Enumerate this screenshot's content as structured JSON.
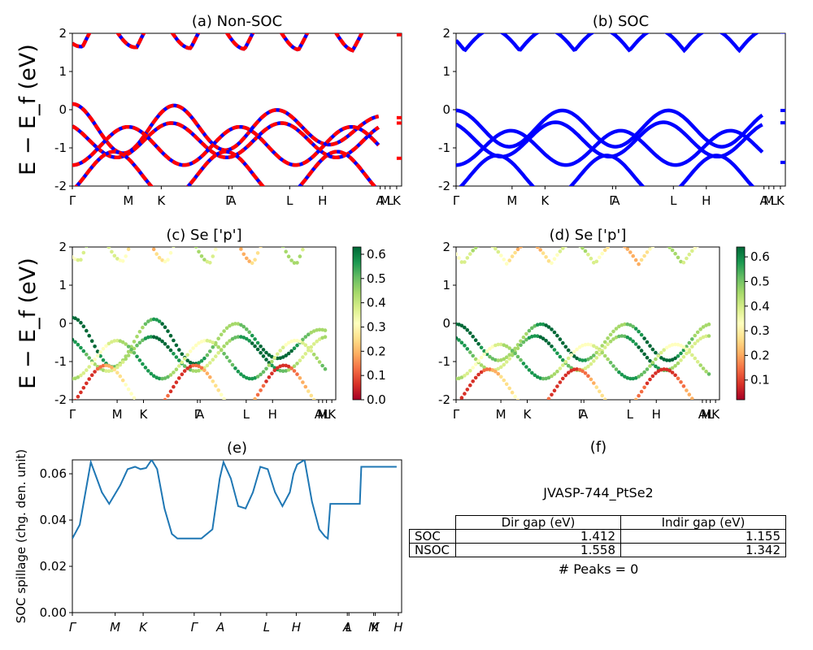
{
  "chart_data": [
    {
      "id": "a",
      "type": "line",
      "title": "(a) Non-SOC",
      "ylabel": "E − E_f (eV)",
      "ylim": [
        -2,
        2
      ],
      "yticks": [
        -2,
        -1,
        0,
        1,
        2
      ],
      "kpoints": [
        "Γ",
        "M",
        "K",
        "Γ",
        "A",
        "L",
        "H",
        "A",
        "M",
        "L",
        "K"
      ],
      "colors": [
        "#0000ff",
        "#ff0000"
      ],
      "style": "dashed-overlay"
    },
    {
      "id": "b",
      "type": "line",
      "title": "(b) SOC",
      "ylim": [
        -2,
        2
      ],
      "yticks": [
        -2,
        -1,
        0,
        1,
        2
      ],
      "kpoints": [
        "Γ",
        "M",
        "K",
        "Γ",
        "A",
        "L",
        "H",
        "A",
        "M",
        "L",
        "K"
      ],
      "colors": [
        "#0000ff"
      ]
    },
    {
      "id": "c",
      "type": "scatter",
      "title": "(c)  Se ['p']",
      "ylabel": "E − E_f (eV)",
      "ylim": [
        -2,
        2
      ],
      "yticks": [
        -2,
        -1,
        0,
        1,
        2
      ],
      "kpoints": [
        "Γ",
        "M",
        "K",
        "Γ",
        "A",
        "L",
        "H",
        "A",
        "M",
        "L",
        "K"
      ],
      "colorbar": {
        "min": 0.0,
        "max": 0.63,
        "ticks": [
          "0.0",
          "0.1",
          "0.2",
          "0.3",
          "0.4",
          "0.5",
          "0.6"
        ],
        "colormap": "RdYlGn"
      }
    },
    {
      "id": "d",
      "type": "scatter",
      "title": "(d) Se ['p']",
      "ylim": [
        -2,
        2
      ],
      "yticks": [
        -2,
        -1,
        0,
        1,
        2
      ],
      "kpoints": [
        "Γ",
        "M",
        "K",
        "Γ",
        "A",
        "L",
        "H",
        "A",
        "M",
        "L",
        "K"
      ],
      "colorbar": {
        "min": 0.02,
        "max": 0.64,
        "ticks": [
          "0.1",
          "0.2",
          "0.3",
          "0.4",
          "0.5",
          "0.6"
        ],
        "colormap": "RdYlGn"
      }
    },
    {
      "id": "e",
      "type": "line",
      "title": "(e)",
      "ylabel": "SOC spillage (chg. den. unit)",
      "ylim": [
        0,
        0.066
      ],
      "yticks": [
        "0.00",
        "0.02",
        "0.04",
        "0.06"
      ],
      "kpoints": [
        "Γ",
        "M",
        "K",
        "Γ",
        "A",
        "L",
        "H",
        "A",
        "L",
        "M",
        "K",
        "H"
      ],
      "color": "#1f77b4",
      "x": [
        0,
        0.2,
        0.5,
        0.8,
        1.0,
        1.3,
        1.5,
        1.7,
        1.85,
        2.0,
        2.15,
        2.3,
        2.5,
        2.7,
        2.85,
        3.0,
        3.2,
        3.5,
        3.8,
        4.0,
        4.1,
        4.3,
        4.5,
        4.7,
        4.9,
        5.1,
        5.3,
        5.5,
        5.7,
        5.9,
        6.0,
        6.1,
        6.3,
        6.5,
        6.7,
        6.85,
        6.93,
        7.0,
        7.4,
        7.8,
        7.84,
        8.0,
        8.2,
        8.5,
        8.8
      ],
      "y": [
        0.032,
        0.038,
        0.065,
        0.052,
        0.047,
        0.055,
        0.062,
        0.063,
        0.062,
        0.0625,
        0.066,
        0.062,
        0.045,
        0.034,
        0.032,
        0.032,
        0.032,
        0.032,
        0.036,
        0.058,
        0.065,
        0.058,
        0.046,
        0.045,
        0.052,
        0.063,
        0.062,
        0.052,
        0.046,
        0.052,
        0.06,
        0.064,
        0.066,
        0.048,
        0.036,
        0.033,
        0.032,
        0.047,
        0.047,
        0.047,
        0.063,
        0.063,
        0.063,
        0.063,
        0.063
      ]
    },
    {
      "id": "f",
      "type": "table",
      "title": "(f)",
      "subtitle": "JVASP-744_PtSe2",
      "columns": [
        "Dir gap (eV)",
        "Indir gap (eV)"
      ],
      "rows": [
        {
          "label": "SOC",
          "values": [
            "1.412",
            "1.155"
          ]
        },
        {
          "label": "NSOC",
          "values": [
            "1.558",
            "1.342"
          ]
        }
      ],
      "footer": "# Peaks = 0"
    }
  ]
}
